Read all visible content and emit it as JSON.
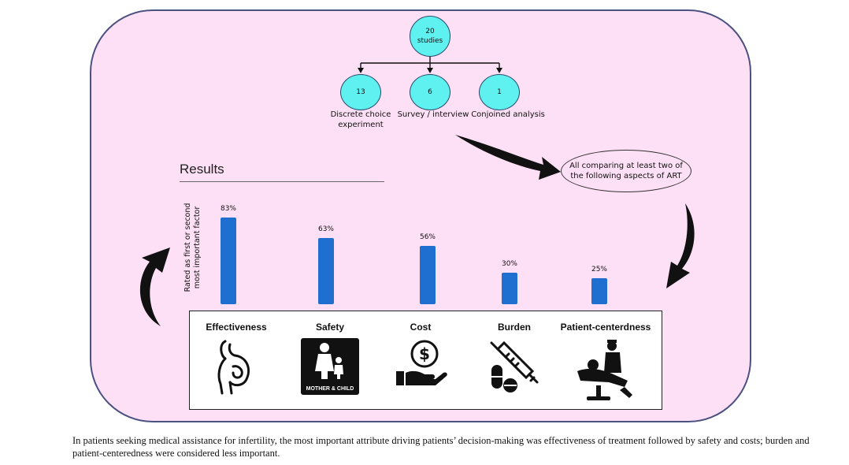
{
  "flow": {
    "top_node": {
      "value": "20",
      "label": "studies"
    },
    "children": [
      {
        "value": "13",
        "label_line1": "Discrete choice",
        "label_line2": "experiment"
      },
      {
        "value": "6",
        "label_line1": "Survey / interview",
        "label_line2": ""
      },
      {
        "value": "1",
        "label_line1": "Conjoined analysis",
        "label_line2": ""
      }
    ],
    "oval_text": "All comparing at least two of the following aspects of ART"
  },
  "results": {
    "title": "Results",
    "ylabel_line1": "Rated as first or second",
    "ylabel_line2": "most important factor"
  },
  "chart_data": {
    "type": "bar",
    "title": "Results",
    "xlabel": "",
    "ylabel": "Rated as first or second most important factor",
    "categories": [
      "Effectiveness",
      "Safety",
      "Cost",
      "Burden",
      "Patient-centerdness"
    ],
    "values": [
      83,
      63,
      56,
      30,
      25
    ],
    "value_labels": [
      "83%",
      "63%",
      "56%",
      "30%",
      "25%"
    ],
    "unit": "%",
    "ylim": [
      0,
      100
    ],
    "bar_color": "#1f6fd1"
  },
  "icons": [
    {
      "name": "pregnant-woman-icon"
    },
    {
      "name": "mother-and-child-icon",
      "text": "MOTHER & CHILD"
    },
    {
      "name": "money-hand-icon"
    },
    {
      "name": "syringe-pills-icon"
    },
    {
      "name": "patient-doctor-icon"
    }
  ],
  "caption": "In patients seeking medical assistance for infertility, the most important attribute driving patients’ decision-making was effectiveness of treatment followed by safety and costs; burden and patient-centeredness were considered less important.",
  "colors": {
    "panel_bg": "#fde0f6",
    "panel_border": "#4b5281",
    "node_fill": "#5ff0f0",
    "bar": "#1f6fd1"
  }
}
